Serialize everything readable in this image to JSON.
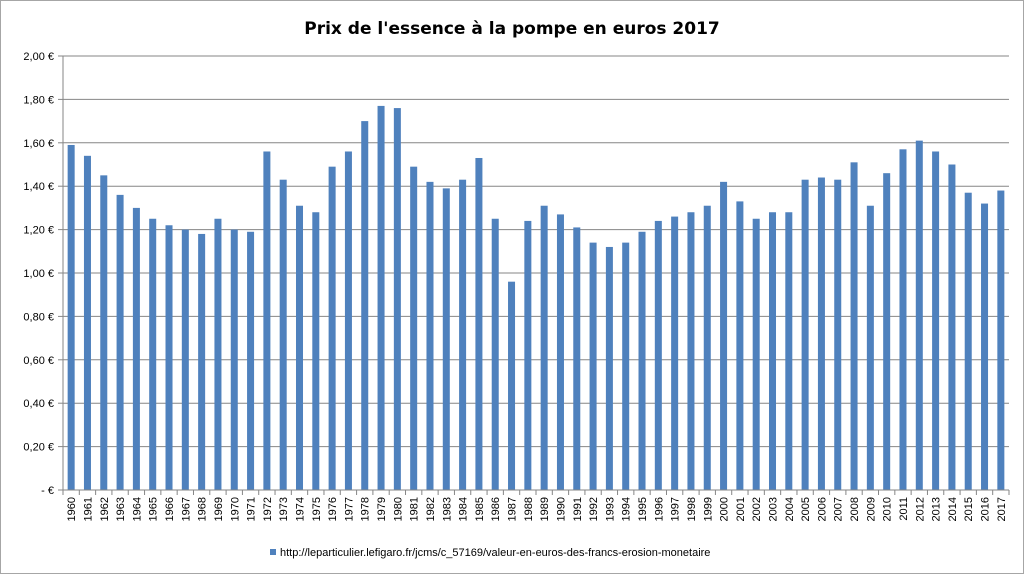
{
  "chart_data": {
    "type": "bar",
    "title": "Prix de l'essence à la pompe en euros 2017",
    "xlabel": "",
    "ylabel": "",
    "ylim": [
      0,
      2.0
    ],
    "ytick_labels": [
      "-  €",
      "0,20 €",
      "0,40 €",
      "0,60 €",
      "0,80 €",
      "1,00 €",
      "1,20 €",
      "1,40 €",
      "1,60 €",
      "1,80 €",
      "2,00 €"
    ],
    "grid": true,
    "legend_position": "bottom",
    "color": "#4f81bd",
    "categories": [
      "1960",
      "1961",
      "1962",
      "1963",
      "1964",
      "1965",
      "1966",
      "1967",
      "1968",
      "1969",
      "1970",
      "1971",
      "1972",
      "1973",
      "1974",
      "1975",
      "1976",
      "1977",
      "1978",
      "1979",
      "1980",
      "1981",
      "1982",
      "1983",
      "1984",
      "1985",
      "1986",
      "1987",
      "1988",
      "1989",
      "1990",
      "1991",
      "1992",
      "1993",
      "1994",
      "1995",
      "1996",
      "1997",
      "1998",
      "1999",
      "2000",
      "2001",
      "2002",
      "2003",
      "2004",
      "2005",
      "2006",
      "2007",
      "2008",
      "2009",
      "2010",
      "2011",
      "2012",
      "2013",
      "2014",
      "2015",
      "2016",
      "2017"
    ],
    "series": [
      {
        "name": "http://leparticulier.lefigaro.fr/jcms/c_57169/valeur-en-euros-des-francs-erosion-monetaire",
        "values": [
          1.59,
          1.54,
          1.45,
          1.36,
          1.3,
          1.25,
          1.22,
          1.2,
          1.18,
          1.25,
          1.2,
          1.19,
          1.56,
          1.43,
          1.31,
          1.28,
          1.49,
          1.56,
          1.7,
          1.77,
          1.76,
          1.49,
          1.42,
          1.39,
          1.43,
          1.53,
          1.25,
          0.96,
          1.24,
          1.31,
          1.27,
          1.21,
          1.14,
          1.12,
          1.14,
          1.19,
          1.24,
          1.26,
          1.28,
          1.31,
          1.42,
          1.33,
          1.25,
          1.28,
          1.28,
          1.43,
          1.44,
          1.43,
          1.51,
          1.31,
          1.46,
          1.57,
          1.61,
          1.56,
          1.5,
          1.37,
          1.32,
          1.38
        ]
      }
    ]
  }
}
